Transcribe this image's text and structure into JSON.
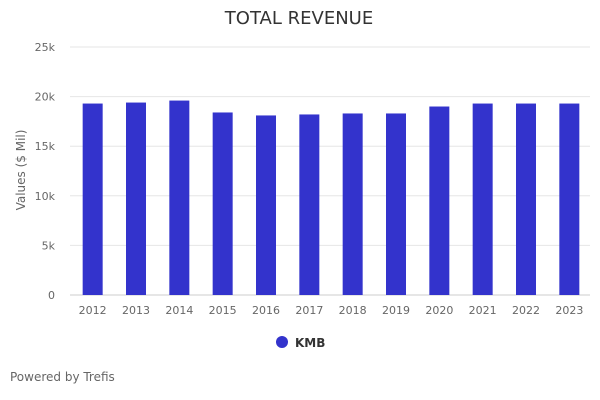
{
  "chart_data": {
    "type": "bar",
    "title": "TOTAL REVENUE",
    "xlabel": "",
    "ylabel": "Values ($ Mil)",
    "categories": [
      "2012",
      "2013",
      "2014",
      "2015",
      "2016",
      "2017",
      "2018",
      "2019",
      "2020",
      "2021",
      "2022",
      "2023"
    ],
    "series": [
      {
        "name": "KMB",
        "color": "#3333cc",
        "values": [
          19300,
          19400,
          19600,
          18400,
          18100,
          18200,
          18300,
          18300,
          19000,
          19300,
          19300,
          19300
        ]
      }
    ],
    "ylim": [
      0,
      25000
    ],
    "yticks": [
      0,
      5000,
      10000,
      15000,
      20000,
      25000
    ],
    "ytick_labels": [
      "0",
      "5k",
      "10k",
      "15k",
      "20k",
      "25k"
    ],
    "grid": true,
    "legend_position": "bottom-center"
  },
  "footer": {
    "credit": "Powered by Trefis"
  }
}
